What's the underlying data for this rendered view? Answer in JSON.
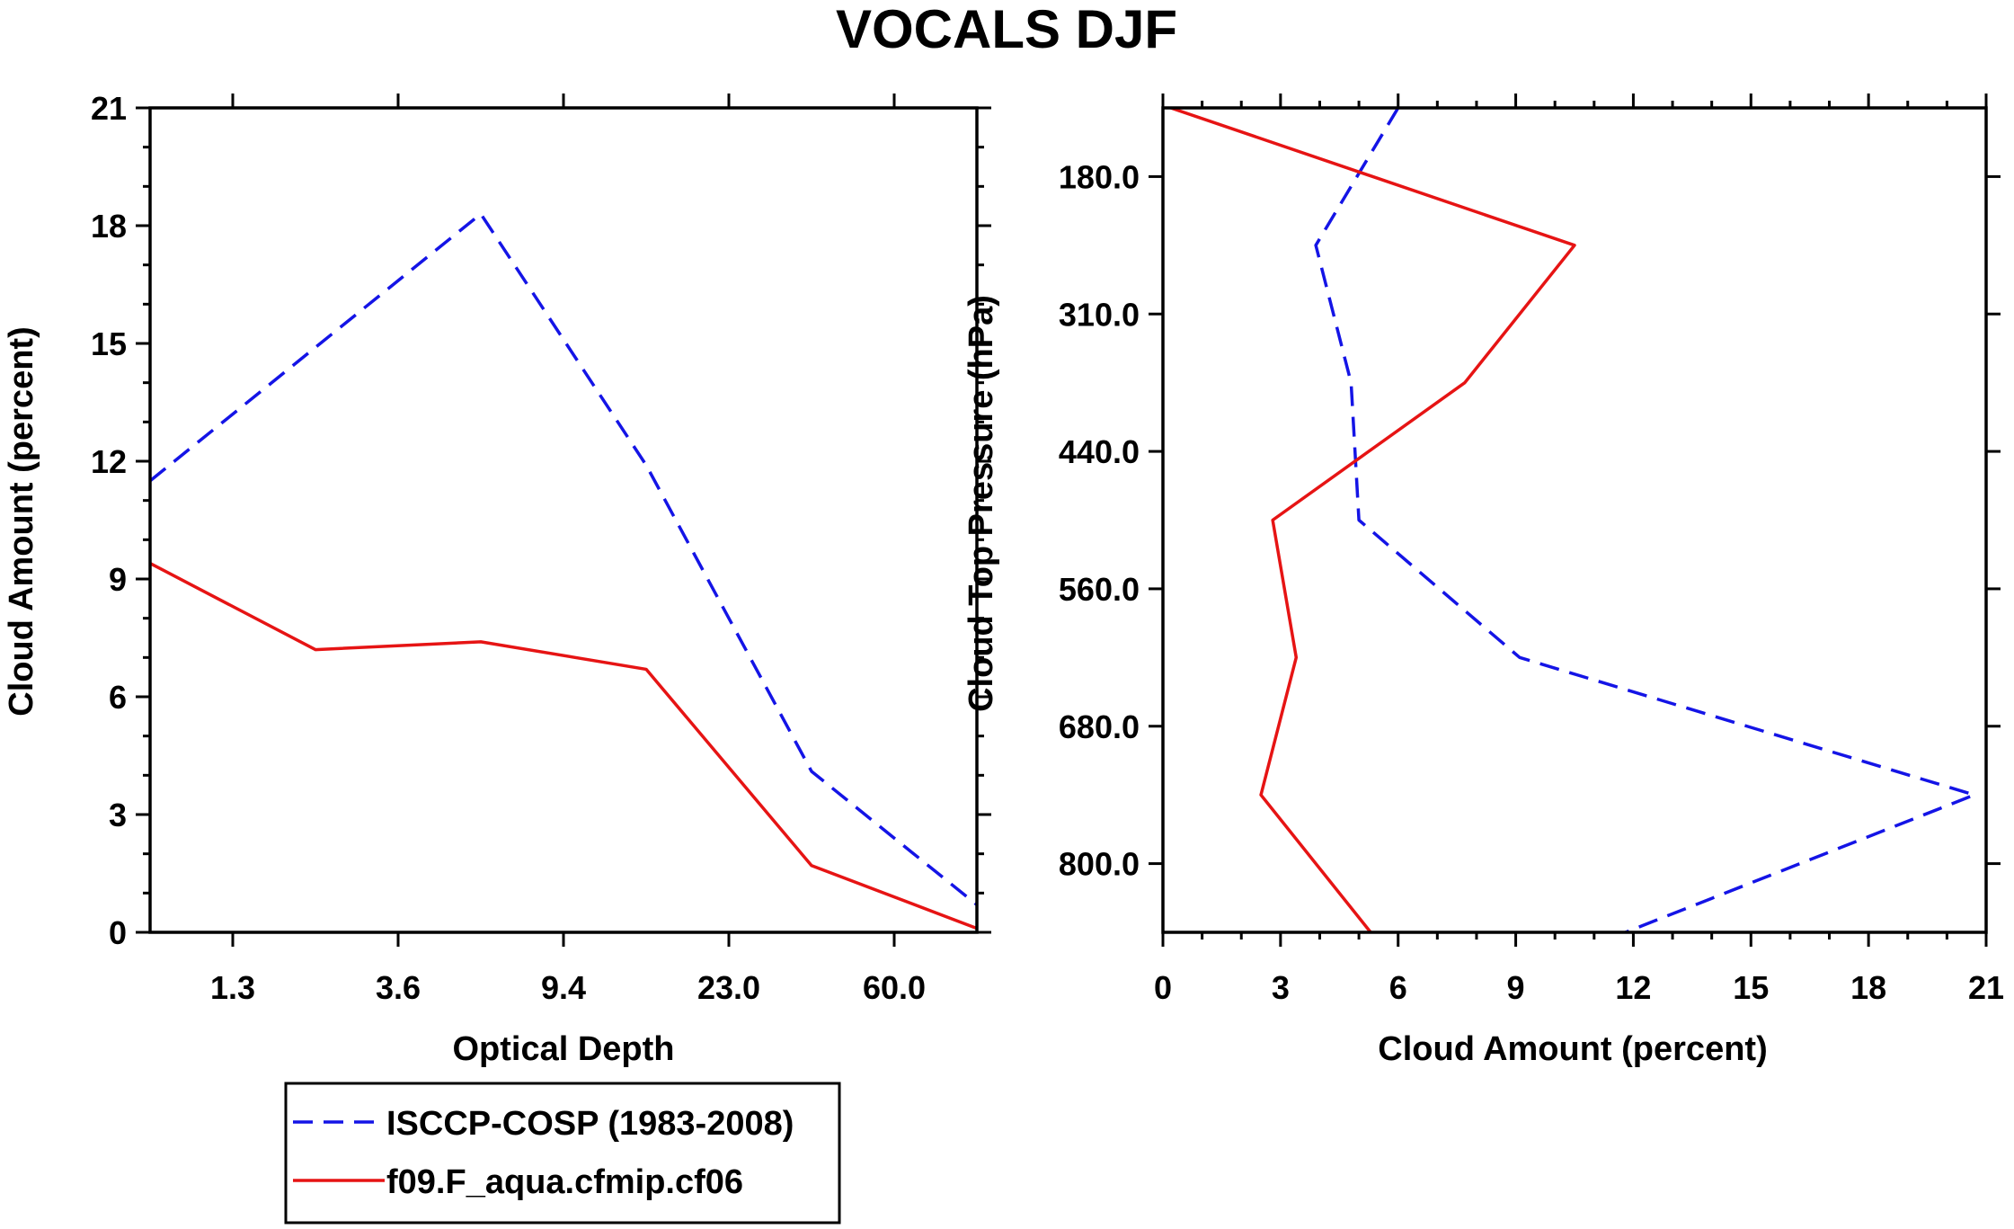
{
  "title": "VOCALS DJF",
  "colors": {
    "isccp": "#1414e6",
    "model": "#e61414",
    "axis": "#000000"
  },
  "legend": {
    "items": [
      {
        "label": "ISCCP-COSP (1983-2008)",
        "color": "#1414e6",
        "dash": "dashed"
      },
      {
        "label": "f09.F_aqua.cfmip.cf06",
        "color": "#e61414",
        "dash": "solid"
      }
    ]
  },
  "chart_data": [
    {
      "type": "line",
      "xlabel": "Optical Depth",
      "ylabel": "Cloud Amount (percent)",
      "x_bin_index": [
        0,
        1,
        2,
        3,
        4,
        5
      ],
      "x_tick_labels": [
        "1.3",
        "3.6",
        "9.4",
        "23.0",
        "60.0"
      ],
      "xlim_bins": [
        0,
        5
      ],
      "ylim": [
        0,
        21
      ],
      "y_ticks": [
        0,
        3,
        6,
        9,
        12,
        15,
        18,
        21
      ],
      "series": [
        {
          "name": "ISCCP-COSP (1983-2008)",
          "values": [
            11.5,
            14.9,
            18.3,
            11.9,
            4.1,
            0.7
          ]
        },
        {
          "name": "f09.F_aqua.cfmip.cf06",
          "values": [
            9.4,
            7.2,
            7.4,
            6.7,
            1.7,
            0.1
          ]
        }
      ]
    },
    {
      "type": "line",
      "xlabel": "Cloud Amount (percent)",
      "ylabel": "Cloud Top Pressure (hPa)",
      "xlim": [
        0,
        21
      ],
      "x_ticks": [
        0,
        3,
        6,
        9,
        12,
        15,
        18,
        21
      ],
      "y_pressure_levels": [
        95,
        245,
        375,
        500,
        620,
        740,
        900
      ],
      "y_tick_labels": [
        "180.0",
        "310.0",
        "440.0",
        "560.0",
        "680.0",
        "800.0"
      ],
      "series": [
        {
          "name": "ISCCP-COSP (1983-2008)",
          "values": [
            6.0,
            3.9,
            4.8,
            5.0,
            9.1,
            20.7,
            11.8
          ]
        },
        {
          "name": "f09.F_aqua.cfmip.cf06",
          "values": [
            0.2,
            10.5,
            7.7,
            2.8,
            3.4,
            2.5,
            5.3
          ]
        }
      ]
    }
  ]
}
